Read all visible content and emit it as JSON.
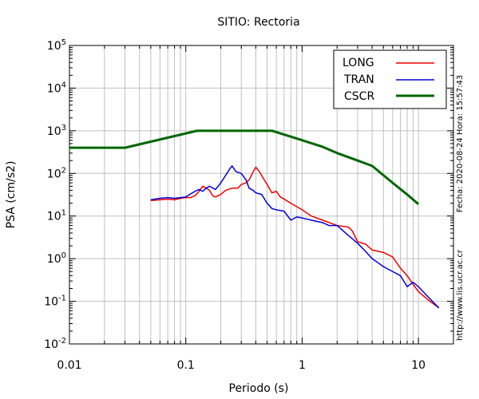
{
  "chart_data": {
    "type": "line",
    "title": "SITIO: Rectoria",
    "xlabel": "Periodo (s)",
    "ylabel": "PSA (cm/s2)",
    "xscale": "log",
    "yscale": "log",
    "xlim": [
      0.01,
      20
    ],
    "ylim": [
      0.01,
      100000
    ],
    "x_ticks": [
      {
        "value": 0.01,
        "label": "0.01"
      },
      {
        "value": 0.1,
        "label": "0.1"
      },
      {
        "value": 1,
        "label": "1"
      },
      {
        "value": 10,
        "label": "10"
      }
    ],
    "y_ticks": [
      {
        "value": 0.01,
        "base": "10",
        "exp": "-2"
      },
      {
        "value": 0.1,
        "base": "10",
        "exp": "-1"
      },
      {
        "value": 1,
        "base": "10",
        "exp": "0"
      },
      {
        "value": 10,
        "base": "10",
        "exp": "1"
      },
      {
        "value": 100,
        "base": "10",
        "exp": "2"
      },
      {
        "value": 1000,
        "base": "10",
        "exp": "3"
      },
      {
        "value": 10000,
        "base": "10",
        "exp": "4"
      },
      {
        "value": 100000,
        "base": "10",
        "exp": "5"
      }
    ],
    "grid": true,
    "legend_position": "top-right",
    "series": [
      {
        "name": "LONG",
        "color": "#ee0000",
        "points": [
          [
            0.05,
            23
          ],
          [
            0.06,
            24
          ],
          [
            0.07,
            25
          ],
          [
            0.08,
            24
          ],
          [
            0.09,
            26
          ],
          [
            0.1,
            27
          ],
          [
            0.11,
            27
          ],
          [
            0.12,
            30
          ],
          [
            0.13,
            38
          ],
          [
            0.14,
            50
          ],
          [
            0.15,
            45
          ],
          [
            0.16,
            40
          ],
          [
            0.17,
            30
          ],
          [
            0.18,
            28
          ],
          [
            0.2,
            32
          ],
          [
            0.22,
            40
          ],
          [
            0.25,
            45
          ],
          [
            0.28,
            45
          ],
          [
            0.3,
            55
          ],
          [
            0.33,
            60
          ],
          [
            0.35,
            70
          ],
          [
            0.38,
            110
          ],
          [
            0.4,
            140
          ],
          [
            0.43,
            110
          ],
          [
            0.46,
            80
          ],
          [
            0.5,
            55
          ],
          [
            0.55,
            35
          ],
          [
            0.6,
            38
          ],
          [
            0.65,
            28
          ],
          [
            0.7,
            25
          ],
          [
            0.8,
            20
          ],
          [
            1.0,
            14
          ],
          [
            1.2,
            10
          ],
          [
            1.5,
            8
          ],
          [
            2.0,
            6
          ],
          [
            2.5,
            5.5
          ],
          [
            2.7,
            4.5
          ],
          [
            3.0,
            2.5
          ],
          [
            3.5,
            2.2
          ],
          [
            4.0,
            1.6
          ],
          [
            5.0,
            1.4
          ],
          [
            6.0,
            1.1
          ],
          [
            7.0,
            0.6
          ],
          [
            8.0,
            0.4
          ],
          [
            9.0,
            0.25
          ],
          [
            10.0,
            0.17
          ],
          [
            12.0,
            0.11
          ],
          [
            15.0,
            0.07
          ]
        ]
      },
      {
        "name": "TRAN",
        "color": "#0000dd",
        "points": [
          [
            0.05,
            24
          ],
          [
            0.06,
            26
          ],
          [
            0.07,
            27
          ],
          [
            0.08,
            26
          ],
          [
            0.09,
            27
          ],
          [
            0.1,
            28
          ],
          [
            0.11,
            33
          ],
          [
            0.12,
            38
          ],
          [
            0.13,
            42
          ],
          [
            0.14,
            38
          ],
          [
            0.15,
            45
          ],
          [
            0.16,
            50
          ],
          [
            0.18,
            42
          ],
          [
            0.2,
            60
          ],
          [
            0.22,
            90
          ],
          [
            0.24,
            130
          ],
          [
            0.25,
            150
          ],
          [
            0.27,
            110
          ],
          [
            0.3,
            100
          ],
          [
            0.33,
            70
          ],
          [
            0.35,
            45
          ],
          [
            0.38,
            40
          ],
          [
            0.4,
            35
          ],
          [
            0.45,
            32
          ],
          [
            0.5,
            20
          ],
          [
            0.55,
            15
          ],
          [
            0.6,
            14
          ],
          [
            0.7,
            13
          ],
          [
            0.8,
            8
          ],
          [
            0.9,
            9.5
          ],
          [
            1.0,
            9
          ],
          [
            1.2,
            8
          ],
          [
            1.5,
            7
          ],
          [
            1.7,
            6
          ],
          [
            2.0,
            6
          ],
          [
            2.5,
            3.5
          ],
          [
            3.0,
            2.3
          ],
          [
            3.5,
            1.5
          ],
          [
            4.0,
            1.0
          ],
          [
            4.5,
            0.8
          ],
          [
            5.0,
            0.65
          ],
          [
            6.0,
            0.5
          ],
          [
            7.0,
            0.4
          ],
          [
            8.0,
            0.22
          ],
          [
            9.0,
            0.28
          ],
          [
            10.0,
            0.22
          ],
          [
            12.0,
            0.13
          ],
          [
            15.0,
            0.07
          ]
        ]
      },
      {
        "name": "CSCR",
        "color": "#006600",
        "points": [
          [
            0.01,
            400
          ],
          [
            0.03,
            400
          ],
          [
            0.125,
            1000
          ],
          [
            0.55,
            1000
          ],
          [
            1.0,
            600
          ],
          [
            1.5,
            420
          ],
          [
            2.0,
            300
          ],
          [
            3.0,
            200
          ],
          [
            4.0,
            150
          ],
          [
            6.0,
            60
          ],
          [
            8.0,
            32
          ],
          [
            10.0,
            19
          ]
        ]
      }
    ]
  },
  "side_labels": {
    "timestamp": "Fecha: 2020-08-24 Hora: 15:57:43",
    "url": "http://www.lis.ucr.ac.cr"
  }
}
